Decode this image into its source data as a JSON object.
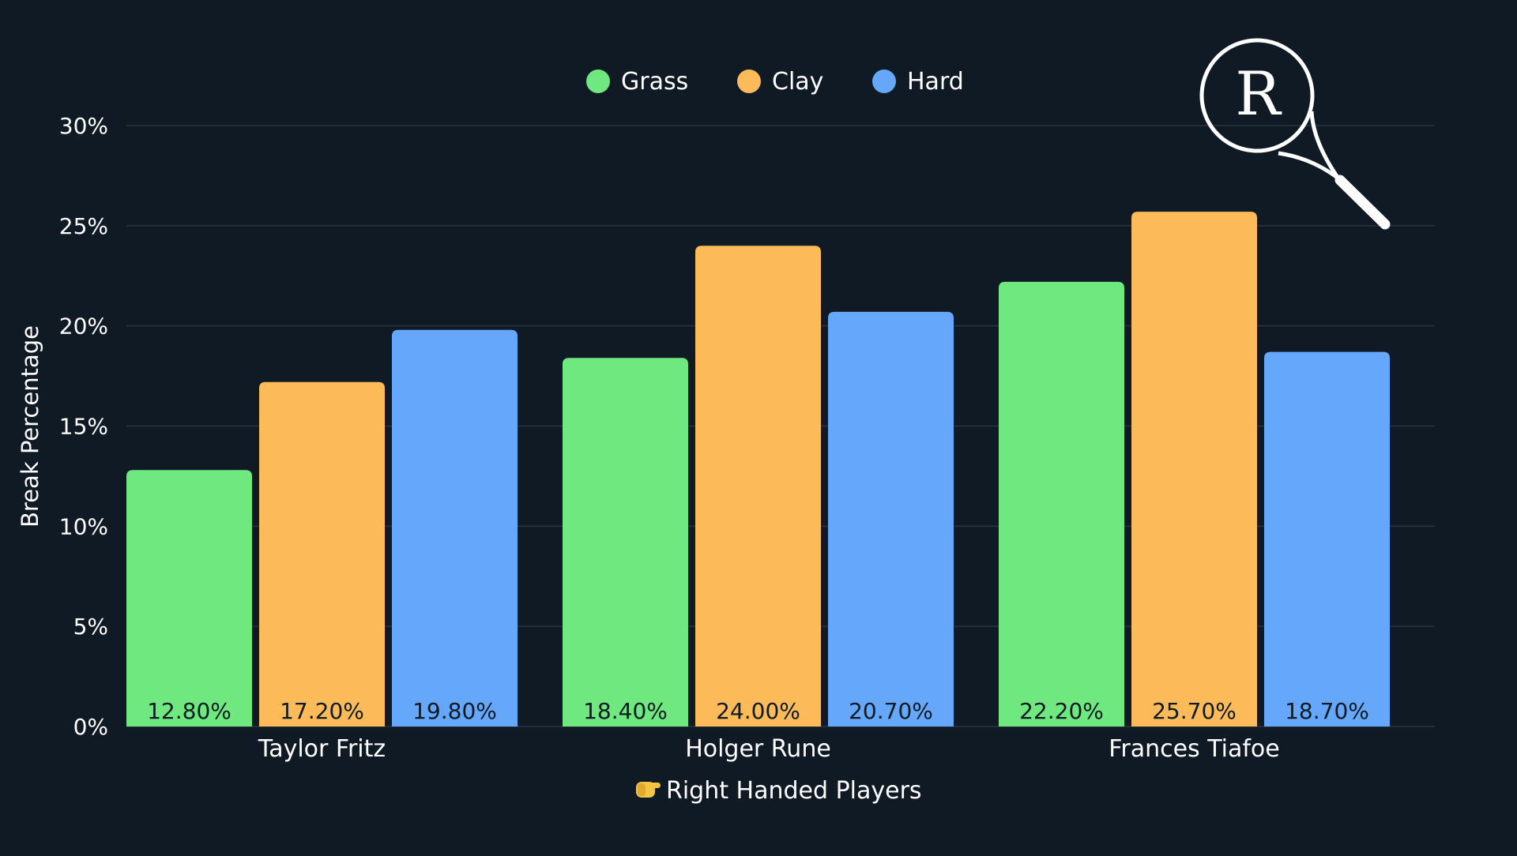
{
  "chart_data": {
    "type": "bar",
    "title": "",
    "xlabel": "Right Handed Players",
    "xlabel_icon": "pointing-hand-icon",
    "ylabel": "Break Percentage",
    "ylim": [
      0,
      30
    ],
    "yticks": [
      0,
      5,
      10,
      15,
      20,
      25,
      30
    ],
    "ytick_labels": [
      "0%",
      "5%",
      "10%",
      "15%",
      "20%",
      "25%",
      "30%"
    ],
    "grid": true,
    "legend_position": "top-center",
    "categories": [
      "Taylor Fritz",
      "Holger Rune",
      "Frances Tiafoe"
    ],
    "series": [
      {
        "name": "Grass",
        "color": "#6fe87f",
        "values": [
          12.8,
          18.4,
          22.2
        ],
        "labels": [
          "12.80%",
          "18.40%",
          "22.20%"
        ]
      },
      {
        "name": "Clay",
        "color": "#fdba58",
        "values": [
          17.2,
          24.0,
          25.7
        ],
        "labels": [
          "17.20%",
          "24.00%",
          "25.70%"
        ]
      },
      {
        "name": "Hard",
        "color": "#65a7fb",
        "values": [
          19.8,
          20.7,
          18.7
        ],
        "labels": [
          "19.80%",
          "20.70%",
          "18.70%"
        ]
      }
    ]
  },
  "logo": {
    "icon": "tennis-racket-logo-icon",
    "letter": "R"
  },
  "colors": {
    "background": "#101a25",
    "text": "#ffffff",
    "grid": "#2a3440",
    "bar_label": "#101a25"
  }
}
